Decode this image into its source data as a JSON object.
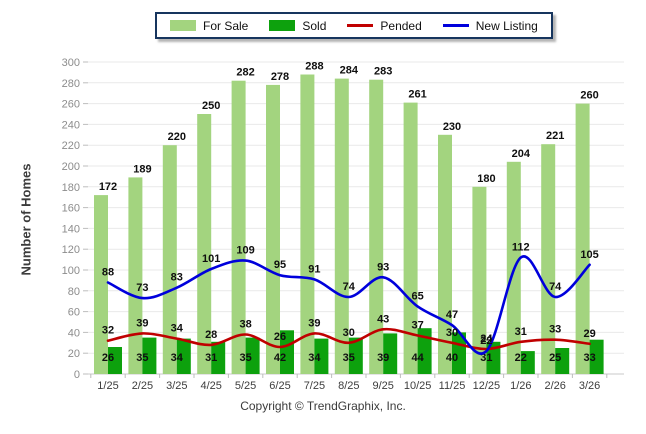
{
  "legend": {
    "items": [
      {
        "label": "For Sale",
        "swatch": "rect",
        "color": "#a3d47f"
      },
      {
        "label": "Sold",
        "swatch": "rect",
        "color": "#0da10d"
      },
      {
        "label": "Pended",
        "swatch": "line",
        "color": "#c00000"
      },
      {
        "label": "New Listing",
        "swatch": "line",
        "color": "#0000dc"
      }
    ]
  },
  "chart_data": {
    "type": "combo",
    "title": "",
    "xlabel": "",
    "ylabel": "Number of Homes",
    "ylim": [
      0,
      300
    ],
    "ytick_step": 20,
    "grid": true,
    "legend_position": "top",
    "categories": [
      "1/25",
      "2/25",
      "3/25",
      "4/25",
      "5/25",
      "6/25",
      "7/25",
      "8/25",
      "9/25",
      "10/25",
      "11/25",
      "12/25",
      "1/26",
      "2/26",
      "3/26"
    ],
    "series": [
      {
        "name": "For Sale",
        "type": "bar",
        "color": "#a3d47f",
        "values": [
          172,
          189,
          220,
          250,
          282,
          278,
          288,
          284,
          283,
          261,
          230,
          180,
          204,
          221,
          260
        ]
      },
      {
        "name": "Sold",
        "type": "bar",
        "color": "#0da10d",
        "values": [
          26,
          35,
          34,
          31,
          35,
          42,
          34,
          35,
          39,
          44,
          40,
          31,
          22,
          25,
          33
        ]
      },
      {
        "name": "Pended",
        "type": "line",
        "color": "#c00000",
        "values": [
          32,
          39,
          34,
          28,
          38,
          26,
          39,
          30,
          43,
          37,
          30,
          24,
          31,
          33,
          29
        ]
      },
      {
        "name": "New Listing",
        "type": "line",
        "color": "#0000dc",
        "values": [
          88,
          73,
          83,
          101,
          109,
          95,
          91,
          74,
          93,
          65,
          47,
          22,
          112,
          74,
          105
        ]
      }
    ]
  },
  "footer": {
    "copyright": "Copyright © TrendGraphix, Inc."
  }
}
